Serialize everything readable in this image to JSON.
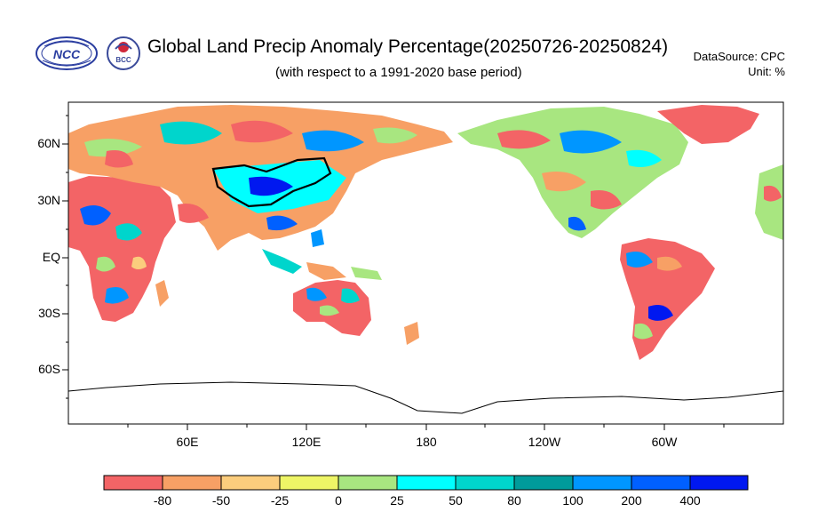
{
  "header": {
    "title": "Global Land Precip Anomaly Percentage(20250726-20250824)",
    "subtitle": "(with respect to a 1991-2020 base period)",
    "data_source": "DataSource:  CPC",
    "unit": "Unit:  %",
    "logo_left_text": "NCC",
    "logo_right_text": "BCC"
  },
  "map": {
    "lat_ticks": [
      "60N",
      "30N",
      "EQ",
      "30S",
      "60S"
    ],
    "lon_ticks": [
      "60E",
      "120E",
      "180",
      "120W",
      "60W"
    ]
  },
  "colorbar": {
    "labels": [
      "-80",
      "-50",
      "-25",
      "0",
      "25",
      "50",
      "80",
      "100",
      "200",
      "400"
    ],
    "colors": [
      "#f36466",
      "#f7a065",
      "#fbcd7d",
      "#eef566",
      "#a8e680",
      "#00ffff",
      "#00d5cc",
      "#009b9b",
      "#0096ff",
      "#0060ff",
      "#0018f0"
    ]
  }
}
